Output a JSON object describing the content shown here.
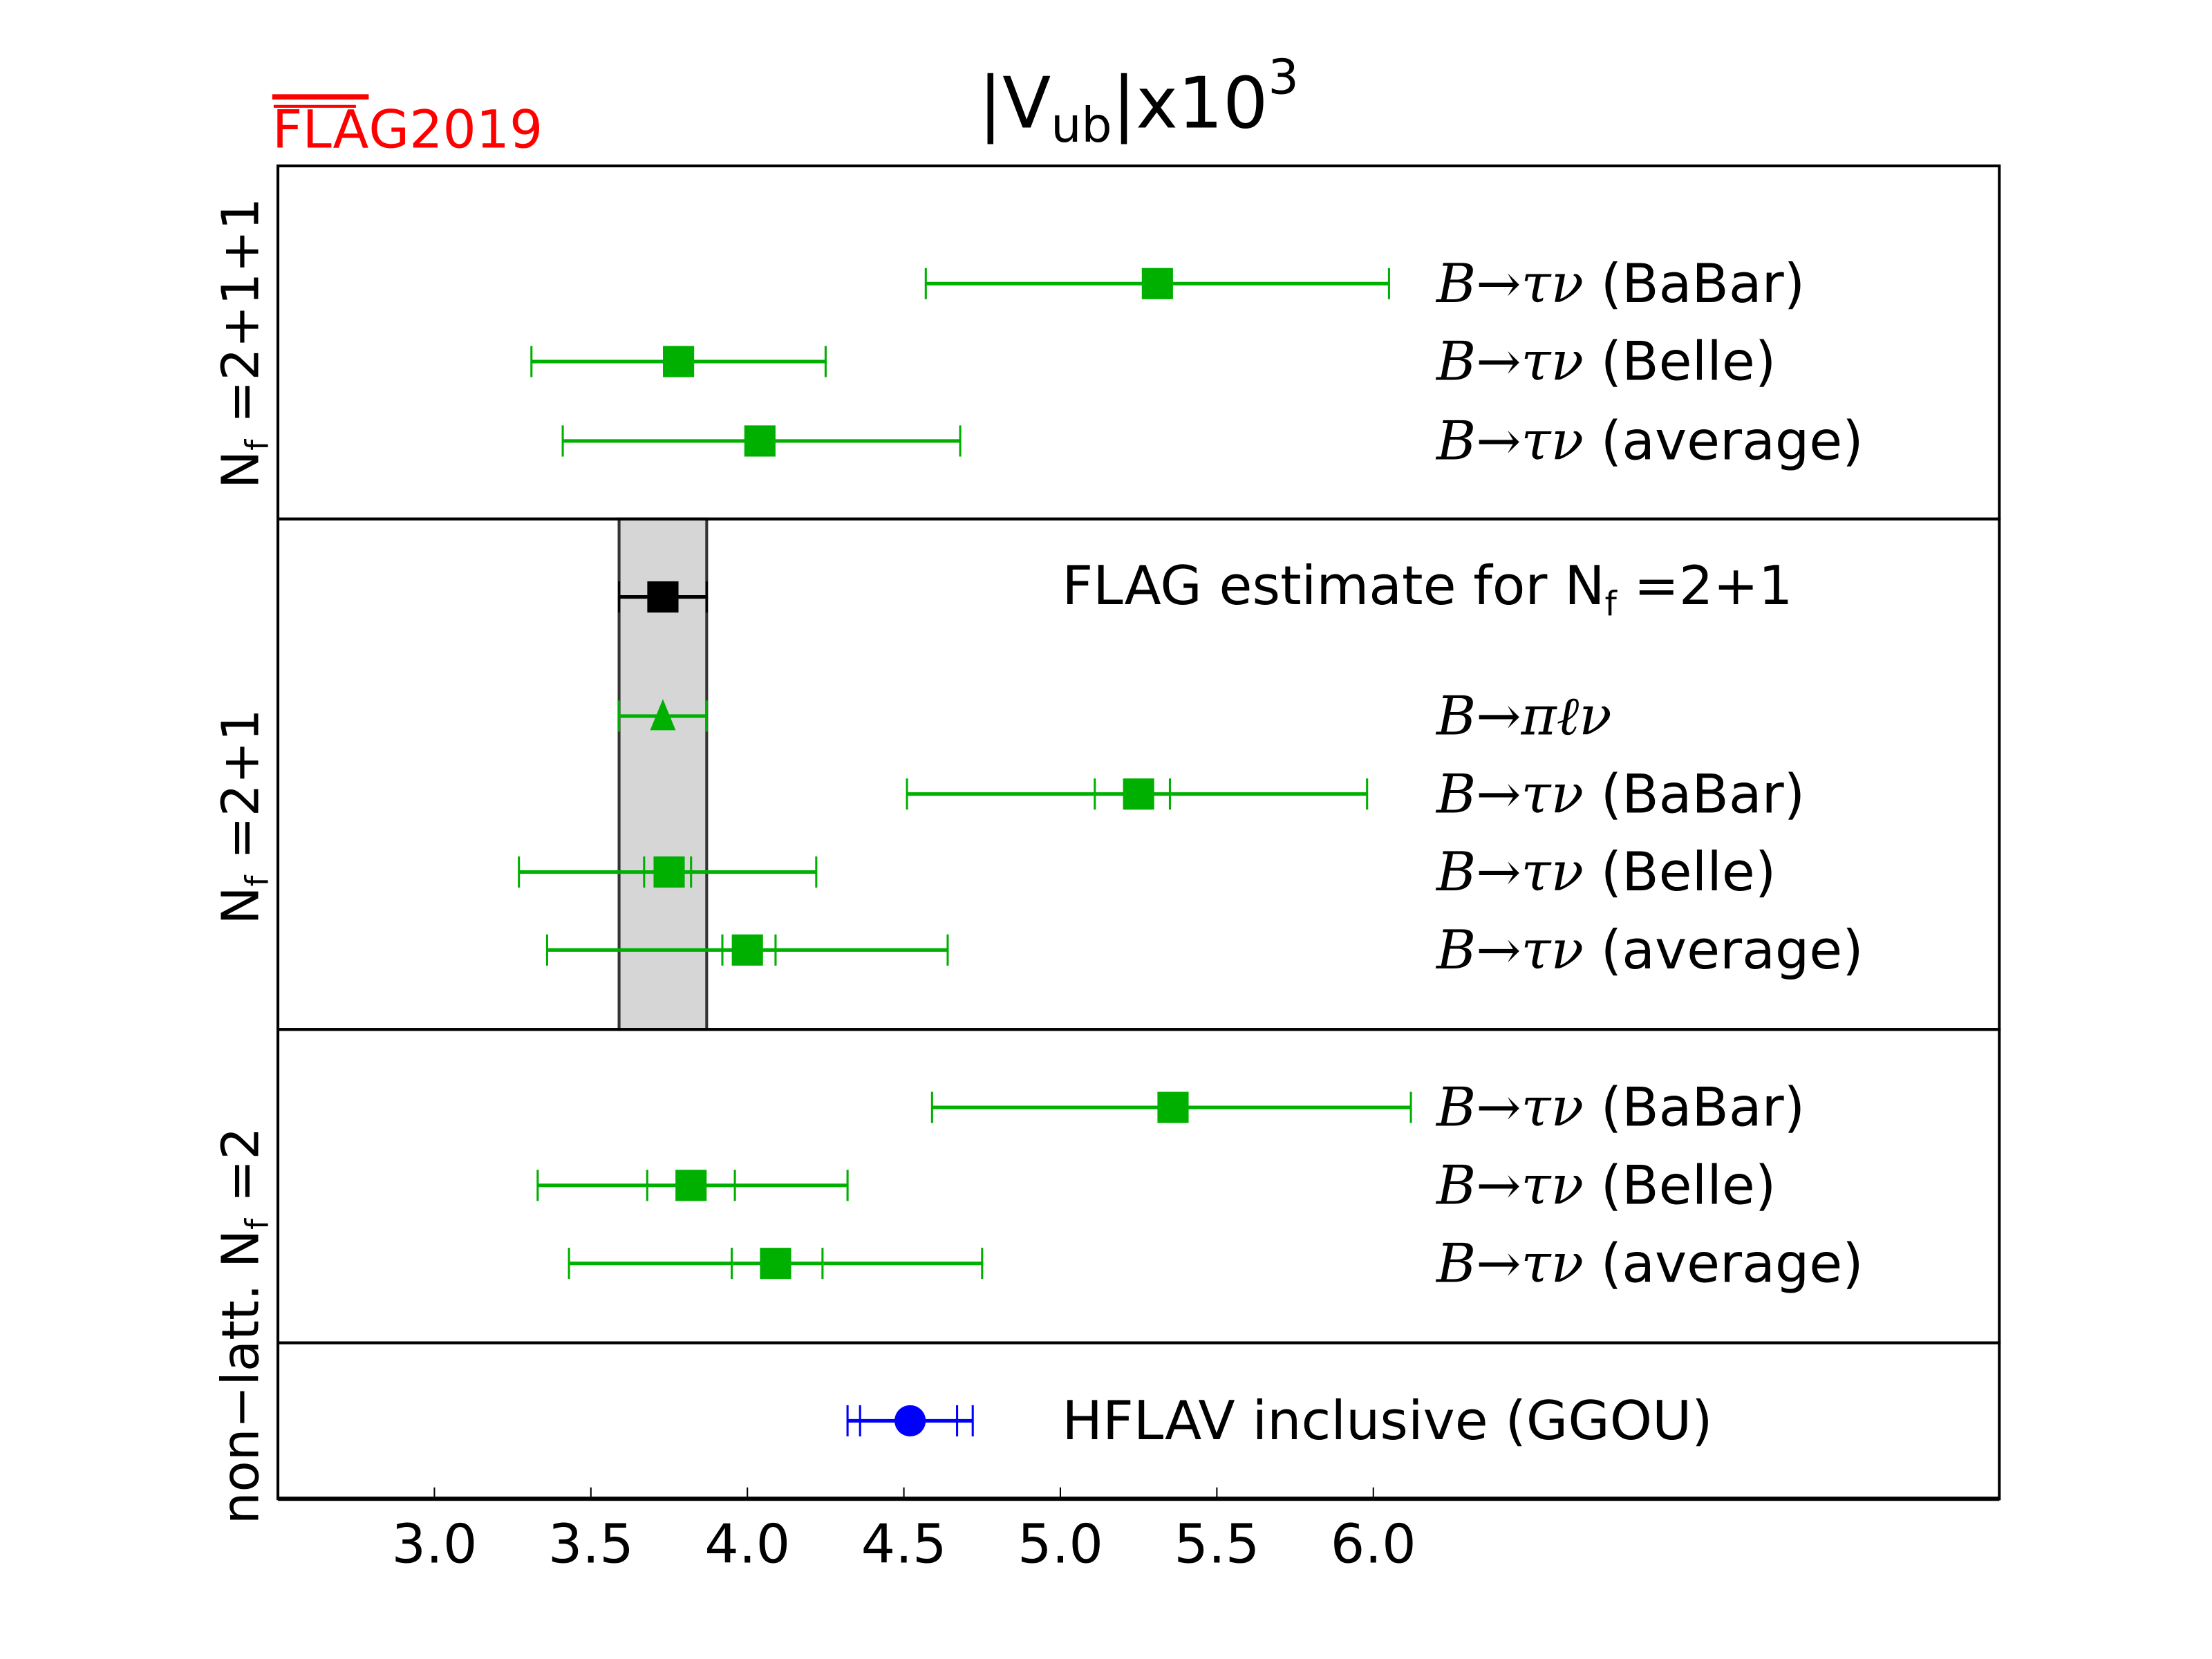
{
  "chart_data": {
    "type": "scatter",
    "subtype": "horizontal-errorbar-comparison",
    "title": "|V_ub|x10^3",
    "title_parts": {
      "main": "|V",
      "sub": "ub",
      "rest": "|x10",
      "sup": "3"
    },
    "logo": {
      "text": "FLAG2019",
      "overlined": "FLA",
      "rest": "G2019",
      "color": "#ff0000"
    },
    "xlim": [
      2.5,
      8.0
    ],
    "xticks": [
      "3.0",
      "3.5",
      "4.0",
      "4.5",
      "5.0",
      "5.5",
      "6.0"
    ],
    "xtick_values": [
      3.0,
      3.5,
      4.0,
      4.5,
      5.0,
      5.5,
      6.0
    ],
    "band": {
      "low": 3.59,
      "high": 3.87,
      "color": "#d6d6d6"
    },
    "panels": [
      {
        "label": "N_f=2+1+1",
        "label_text": "N",
        "label_sub": "f",
        "label_rest": " =2+1+1",
        "points": [
          {
            "math": "B→τν",
            "name": " (BaBar)",
            "value": 5.31,
            "stat_low": null,
            "stat_high": null,
            "low": 4.57,
            "high": 6.05,
            "marker": "square",
            "color": "#00b000"
          },
          {
            "math": "B→τν",
            "name": " (Belle)",
            "value": 3.78,
            "stat_low": null,
            "stat_high": null,
            "low": 3.31,
            "high": 4.25,
            "marker": "square",
            "color": "#00b000"
          },
          {
            "math": "B→τν",
            "name": " (average)",
            "value": 4.04,
            "stat_low": null,
            "stat_high": null,
            "low": 3.41,
            "high": 4.68,
            "marker": "square",
            "color": "#00b000"
          }
        ]
      },
      {
        "label": "N_f=2+1",
        "label_text": "N",
        "label_sub": "f",
        "label_rest": " =2+1",
        "estimate": {
          "text": "FLAG estimate for N",
          "sub": "f",
          "rest": " =2+1",
          "value": 3.73,
          "low": 3.59,
          "high": 3.87,
          "color": "#000000"
        },
        "points": [
          {
            "math": "B→πℓν",
            "name": "",
            "value": 3.73,
            "stat_low": null,
            "stat_high": null,
            "low": 3.59,
            "high": 3.87,
            "marker": "triangle",
            "color": "#00b000"
          },
          {
            "math": "B→τν",
            "name": " (BaBar)",
            "value": 5.25,
            "stat_low": 5.11,
            "stat_high": 5.35,
            "low": 4.51,
            "high": 5.98,
            "marker": "square",
            "color": "#00b000"
          },
          {
            "math": "B→τν",
            "name": " (Belle)",
            "value": 3.75,
            "stat_low": 3.67,
            "stat_high": 3.82,
            "low": 3.27,
            "high": 4.22,
            "marker": "square",
            "color": "#00b000"
          },
          {
            "math": "B→τν",
            "name": " (average)",
            "value": 4.0,
            "stat_low": 3.92,
            "stat_high": 4.09,
            "low": 3.36,
            "high": 4.64,
            "marker": "square",
            "color": "#00b000"
          }
        ]
      },
      {
        "label": "N_f=2",
        "label_text": "N",
        "label_sub": "f",
        "label_rest": " =2",
        "points": [
          {
            "math": "B→τν",
            "name": " (BaBar)",
            "value": 5.36,
            "stat_low": null,
            "stat_high": null,
            "low": 4.59,
            "high": 6.12,
            "marker": "square",
            "color": "#00b000"
          },
          {
            "math": "B→τν",
            "name": " (Belle)",
            "value": 3.82,
            "stat_low": 3.68,
            "stat_high": 3.96,
            "low": 3.33,
            "high": 4.32,
            "marker": "square",
            "color": "#00b000"
          },
          {
            "math": "B→τν",
            "name": " (average)",
            "value": 4.09,
            "stat_low": 3.95,
            "stat_high": 4.24,
            "low": 3.43,
            "high": 4.75,
            "marker": "square",
            "color": "#00b000"
          }
        ]
      },
      {
        "label": "non−latt.",
        "label_text": "non−latt.",
        "points": [
          {
            "math": "",
            "name": "HFLAV inclusive (GGOU)",
            "value": 4.52,
            "stat_low": 4.36,
            "stat_high": 4.67,
            "low": 4.32,
            "high": 4.72,
            "marker": "circle",
            "color": "#0000ff"
          }
        ]
      }
    ]
  }
}
